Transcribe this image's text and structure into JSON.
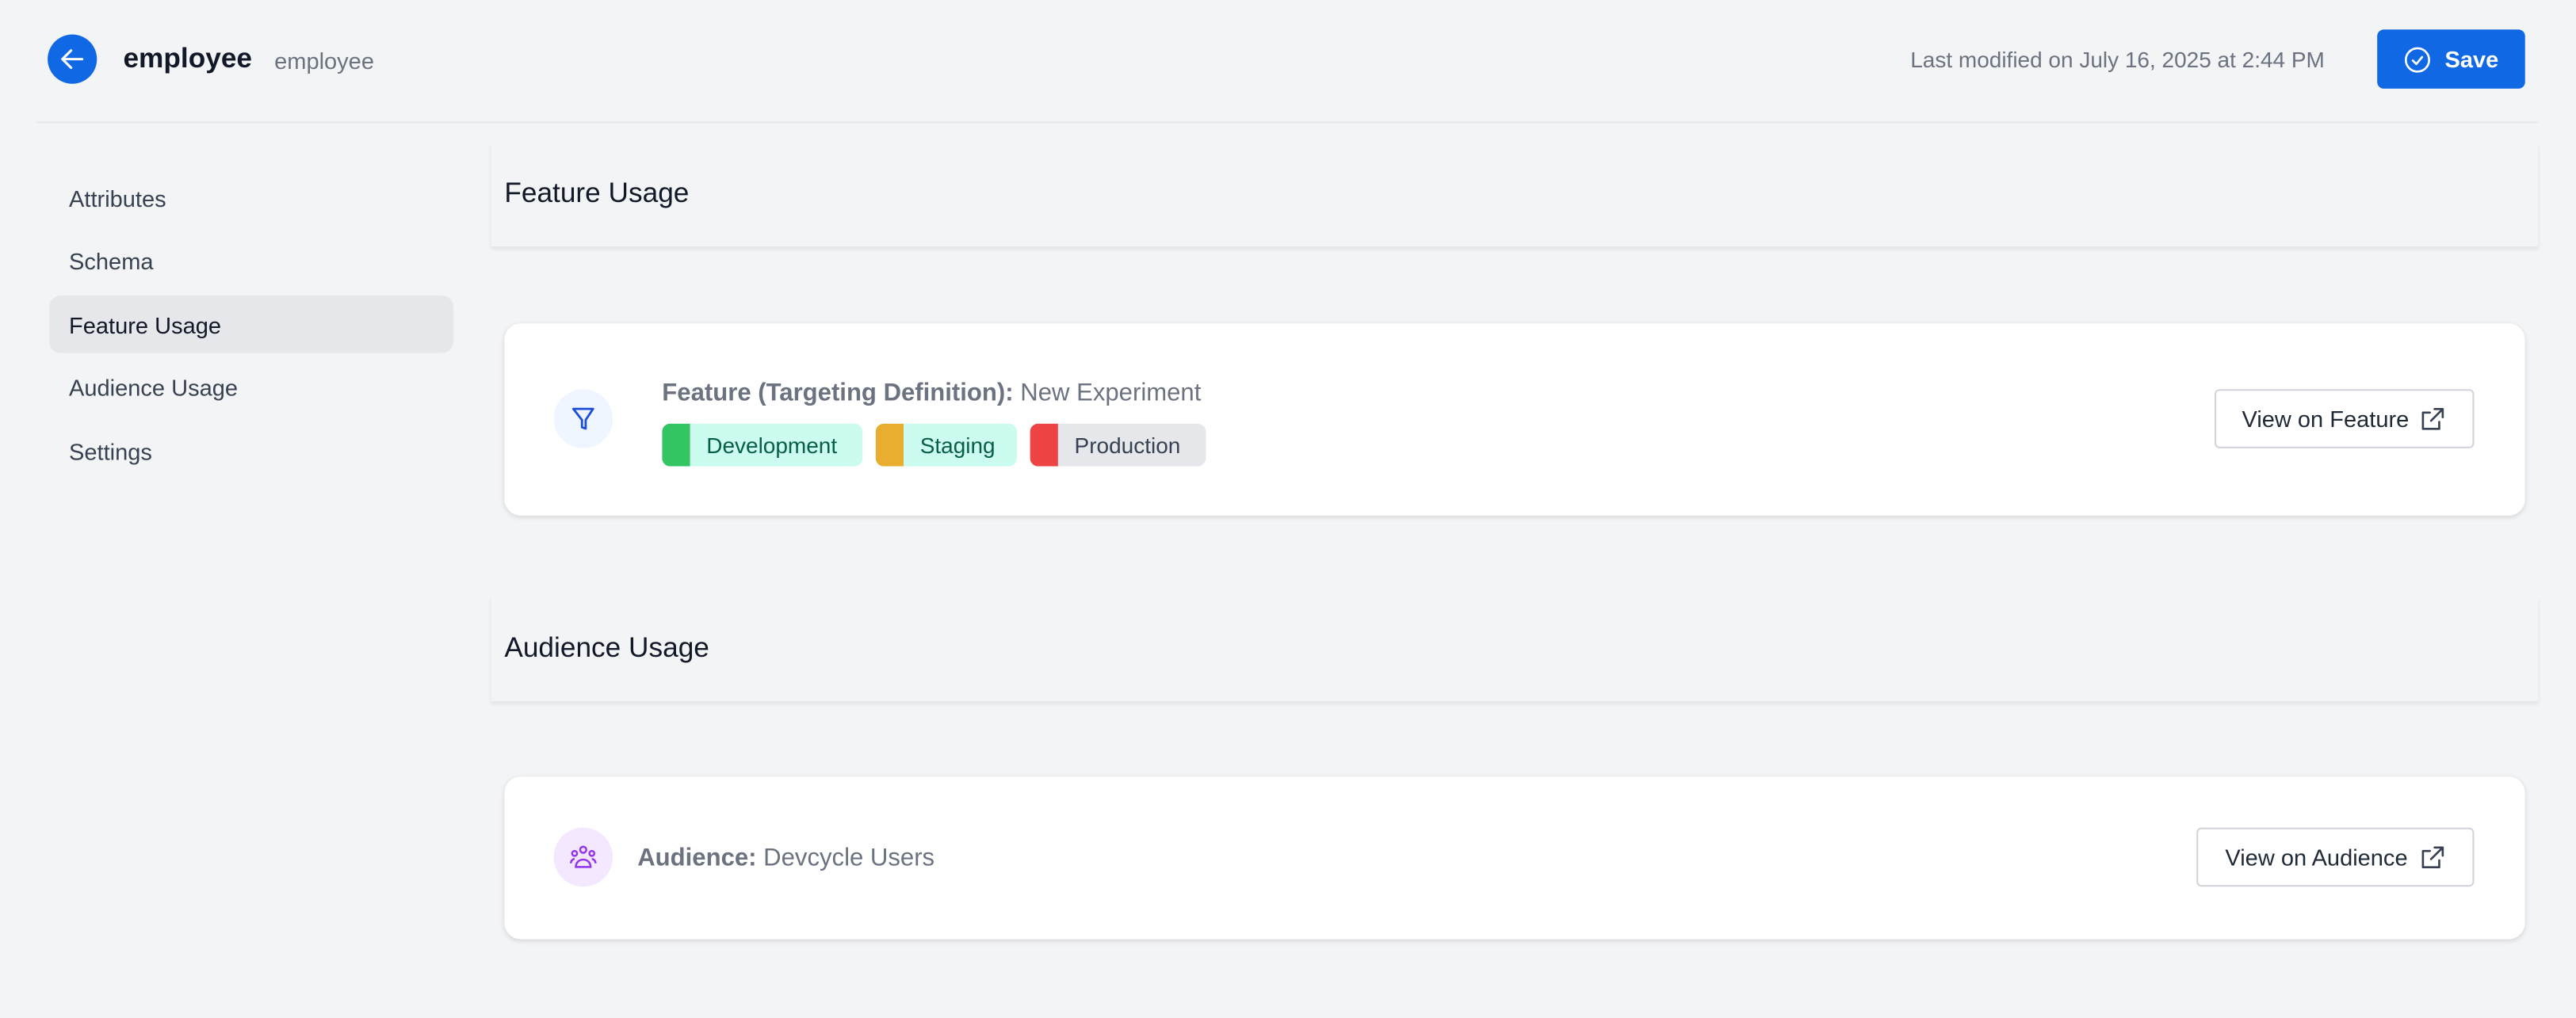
{
  "header": {
    "title": "employee",
    "subtitle": "employee",
    "last_modified": "Last modified on July 16, 2025 at 2:44 PM",
    "save_label": "Save",
    "accent_color": "#1068e5"
  },
  "sidebar": {
    "items": [
      {
        "label": "Attributes",
        "active": false
      },
      {
        "label": "Schema",
        "active": false
      },
      {
        "label": "Feature Usage",
        "active": true
      },
      {
        "label": "Audience Usage",
        "active": false
      },
      {
        "label": "Settings",
        "active": false
      }
    ]
  },
  "feature_usage": {
    "heading": "Feature Usage",
    "card": {
      "icon": "funnel-icon",
      "title_label": "Feature (Targeting Definition):",
      "title_value": "New Experiment",
      "environments": [
        {
          "label": "Development",
          "color": "#34c563",
          "bg": "#ccfbef"
        },
        {
          "label": "Staging",
          "color": "#e9ae2f",
          "bg": "#ccfbef"
        },
        {
          "label": "Production",
          "color": "#ef4444",
          "bg": "#e5e7eb"
        }
      ],
      "button_label": "View on Feature"
    }
  },
  "audience_usage": {
    "heading": "Audience Usage",
    "card": {
      "icon": "users-group-icon",
      "title_label": "Audience:",
      "title_value": "Devcycle Users",
      "button_label": "View on Audience"
    }
  }
}
